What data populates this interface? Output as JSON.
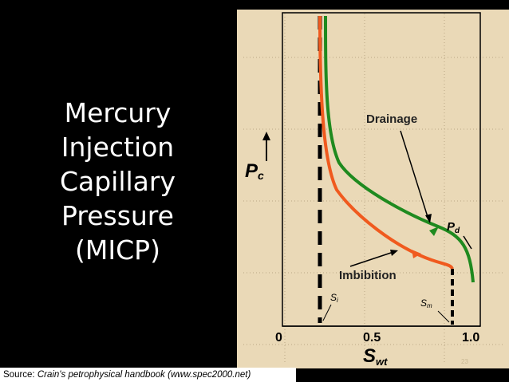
{
  "title": {
    "lines": [
      "Mercury",
      "Injection",
      "Capillary",
      "Pressure",
      "(MICP)"
    ]
  },
  "source": {
    "prefix": "Source: ",
    "text": "Crain's petrophysical handbook (www.spec2000.net)"
  },
  "page_number": "23",
  "figure": {
    "y_axis_symbol": "P",
    "y_axis_subscript": "c",
    "x_axis_symbol": "S",
    "x_axis_subscript": "wt",
    "ticks": [
      "0",
      "0.5",
      "1.0"
    ],
    "labels": {
      "drainage": "Drainage",
      "imbibition": "Imbibition",
      "pd_main": "P",
      "pd_sub": "d",
      "si_main": "S",
      "si_sub": "i",
      "sm_main": "S",
      "sm_sub": "m"
    },
    "colors": {
      "background": "#ead9b7",
      "drainage": "#1f8a1f",
      "imbibition": "#f05a1e",
      "axis": "#000000"
    }
  }
}
